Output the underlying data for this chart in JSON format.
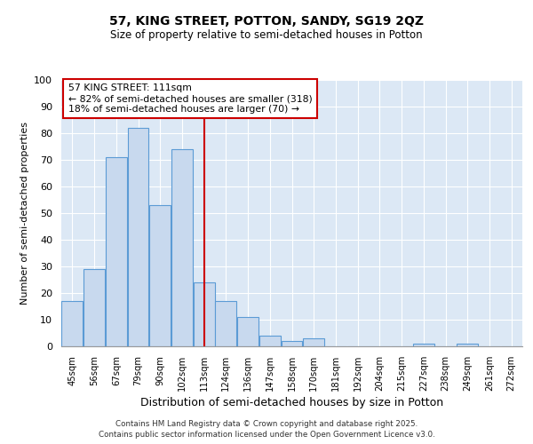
{
  "title": "57, KING STREET, POTTON, SANDY, SG19 2QZ",
  "subtitle": "Size of property relative to semi-detached houses in Potton",
  "xlabel": "Distribution of semi-detached houses by size in Potton",
  "ylabel": "Number of semi-detached properties",
  "bin_labels": [
    "45sqm",
    "56sqm",
    "67sqm",
    "79sqm",
    "90sqm",
    "102sqm",
    "113sqm",
    "124sqm",
    "136sqm",
    "147sqm",
    "158sqm",
    "170sqm",
    "181sqm",
    "192sqm",
    "204sqm",
    "215sqm",
    "227sqm",
    "238sqm",
    "249sqm",
    "261sqm",
    "272sqm"
  ],
  "bar_heights": [
    17,
    29,
    71,
    82,
    53,
    74,
    24,
    17,
    11,
    4,
    2,
    3,
    0,
    0,
    0,
    0,
    1,
    0,
    1,
    0,
    0
  ],
  "bar_color": "#c8d9ee",
  "bar_edge_color": "#5b9bd5",
  "vline_color": "#cc0000",
  "vline_pos": 6.0,
  "annotation_title": "57 KING STREET: 111sqm",
  "annotation_line1": "← 82% of semi-detached houses are smaller (318)",
  "annotation_line2": "18% of semi-detached houses are larger (70) →",
  "annotation_box_color": "#cc0000",
  "ylim": [
    0,
    100
  ],
  "yticks": [
    0,
    10,
    20,
    30,
    40,
    50,
    60,
    70,
    80,
    90,
    100
  ],
  "fig_bg": "#ffffff",
  "plot_bg": "#dce8f5",
  "grid_color": "#ffffff",
  "footer_line1": "Contains HM Land Registry data © Crown copyright and database right 2025.",
  "footer_line2": "Contains public sector information licensed under the Open Government Licence v3.0."
}
